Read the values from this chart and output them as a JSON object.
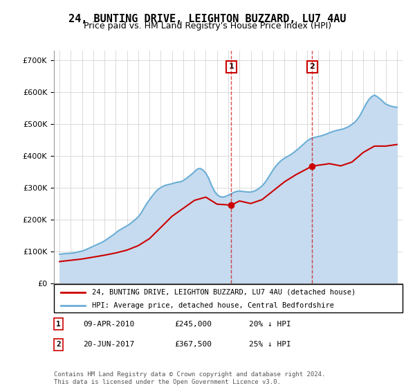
{
  "title": "24, BUNTING DRIVE, LEIGHTON BUZZARD, LU7 4AU",
  "subtitle": "Price paid vs. HM Land Registry's House Price Index (HPI)",
  "legend_line1": "24, BUNTING DRIVE, LEIGHTON BUZZARD, LU7 4AU (detached house)",
  "legend_line2": "HPI: Average price, detached house, Central Bedfordshire",
  "annotation1_label": "1",
  "annotation1_date": "09-APR-2010",
  "annotation1_price": "£245,000",
  "annotation1_hpi": "20% ↓ HPI",
  "annotation2_label": "2",
  "annotation2_date": "20-JUN-2017",
  "annotation2_price": "£367,500",
  "annotation2_hpi": "25% ↓ HPI",
  "footer": "Contains HM Land Registry data © Crown copyright and database right 2024.\nThis data is licensed under the Open Government Licence v3.0.",
  "sale1_year": 2010.27,
  "sale1_price": 245000,
  "sale2_year": 2017.47,
  "sale2_price": 367500,
  "hpi_color": "#6baed6",
  "hpi_fill_color": "#c6dbef",
  "sale_color": "#cc0000",
  "annotation_color": "#cc0000",
  "background_color": "#ffffff",
  "grid_color": "#cccccc",
  "ylim_min": 0,
  "ylim_max": 730000,
  "xlim_min": 1994.5,
  "xlim_max": 2025.5,
  "yticks": [
    0,
    100000,
    200000,
    300000,
    400000,
    500000,
    600000,
    700000
  ],
  "ytick_labels": [
    "£0",
    "£100K",
    "£200K",
    "£300K",
    "£400K",
    "£500K",
    "£600K",
    "£700K"
  ],
  "xticks": [
    1995,
    1996,
    1997,
    1998,
    1999,
    2000,
    2001,
    2002,
    2003,
    2004,
    2005,
    2006,
    2007,
    2008,
    2009,
    2010,
    2011,
    2012,
    2013,
    2014,
    2015,
    2016,
    2017,
    2018,
    2019,
    2020,
    2021,
    2022,
    2023,
    2024,
    2025
  ],
  "hpi_years": [
    1995,
    1995.25,
    1995.5,
    1995.75,
    1996,
    1996.25,
    1996.5,
    1996.75,
    1997,
    1997.25,
    1997.5,
    1997.75,
    1998,
    1998.25,
    1998.5,
    1998.75,
    1999,
    1999.25,
    1999.5,
    1999.75,
    2000,
    2000.25,
    2000.5,
    2000.75,
    2001,
    2001.25,
    2001.5,
    2001.75,
    2002,
    2002.25,
    2002.5,
    2002.75,
    2003,
    2003.25,
    2003.5,
    2003.75,
    2004,
    2004.25,
    2004.5,
    2004.75,
    2005,
    2005.25,
    2005.5,
    2005.75,
    2006,
    2006.25,
    2006.5,
    2006.75,
    2007,
    2007.25,
    2007.5,
    2007.75,
    2008,
    2008.25,
    2008.5,
    2008.75,
    2009,
    2009.25,
    2009.5,
    2009.75,
    2010,
    2010.25,
    2010.5,
    2010.75,
    2011,
    2011.25,
    2011.5,
    2011.75,
    2012,
    2012.25,
    2012.5,
    2012.75,
    2013,
    2013.25,
    2013.5,
    2013.75,
    2014,
    2014.25,
    2014.5,
    2014.75,
    2015,
    2015.25,
    2015.5,
    2015.75,
    2016,
    2016.25,
    2016.5,
    2016.75,
    2017,
    2017.25,
    2017.5,
    2017.75,
    2018,
    2018.25,
    2018.5,
    2018.75,
    2019,
    2019.25,
    2019.5,
    2019.75,
    2020,
    2020.25,
    2020.5,
    2020.75,
    2021,
    2021.25,
    2021.5,
    2021.75,
    2022,
    2022.25,
    2022.5,
    2022.75,
    2023,
    2023.25,
    2023.5,
    2023.75,
    2024,
    2024.25,
    2024.5,
    2024.75,
    2025
  ],
  "hpi_values": [
    91000,
    92000,
    93000,
    93500,
    94000,
    95000,
    97000,
    99000,
    101000,
    104000,
    108000,
    112000,
    116000,
    120000,
    124000,
    128000,
    133000,
    139000,
    145000,
    151000,
    158000,
    165000,
    170000,
    175000,
    180000,
    186000,
    193000,
    200000,
    208000,
    220000,
    235000,
    250000,
    262000,
    274000,
    285000,
    294000,
    300000,
    305000,
    308000,
    310000,
    312000,
    315000,
    317000,
    318000,
    322000,
    328000,
    335000,
    342000,
    350000,
    358000,
    360000,
    355000,
    345000,
    330000,
    308000,
    290000,
    278000,
    272000,
    270000,
    272000,
    276000,
    280000,
    285000,
    288000,
    289000,
    288000,
    287000,
    286000,
    286000,
    288000,
    292000,
    298000,
    305000,
    315000,
    328000,
    342000,
    356000,
    368000,
    378000,
    386000,
    392000,
    397000,
    402000,
    408000,
    415000,
    422000,
    430000,
    438000,
    446000,
    452000,
    456000,
    458000,
    460000,
    462000,
    465000,
    468000,
    472000,
    475000,
    478000,
    480000,
    482000,
    484000,
    488000,
    492000,
    498000,
    505000,
    515000,
    528000,
    545000,
    562000,
    576000,
    585000,
    590000,
    585000,
    578000,
    570000,
    562000,
    558000,
    555000,
    553000,
    552000
  ],
  "sale_line_points": [
    [
      1995.0,
      68000
    ],
    [
      1996.0,
      72000
    ],
    [
      1997.0,
      76000
    ],
    [
      1998.0,
      82000
    ],
    [
      1999.0,
      88000
    ],
    [
      2000.0,
      95000
    ],
    [
      2001.0,
      104000
    ],
    [
      2002.0,
      118000
    ],
    [
      2003.0,
      140000
    ],
    [
      2004.0,
      175000
    ],
    [
      2005.0,
      210000
    ],
    [
      2006.0,
      235000
    ],
    [
      2007.0,
      260000
    ],
    [
      2008.0,
      270000
    ],
    [
      2009.0,
      248000
    ],
    [
      2010.27,
      245000
    ],
    [
      2011.0,
      258000
    ],
    [
      2012.0,
      250000
    ],
    [
      2013.0,
      262000
    ],
    [
      2014.0,
      290000
    ],
    [
      2015.0,
      318000
    ],
    [
      2016.0,
      340000
    ],
    [
      2017.47,
      367500
    ],
    [
      2018.0,
      370000
    ],
    [
      2019.0,
      375000
    ],
    [
      2020.0,
      368000
    ],
    [
      2021.0,
      380000
    ],
    [
      2022.0,
      410000
    ],
    [
      2023.0,
      430000
    ],
    [
      2024.0,
      430000
    ],
    [
      2025.0,
      435000
    ]
  ]
}
